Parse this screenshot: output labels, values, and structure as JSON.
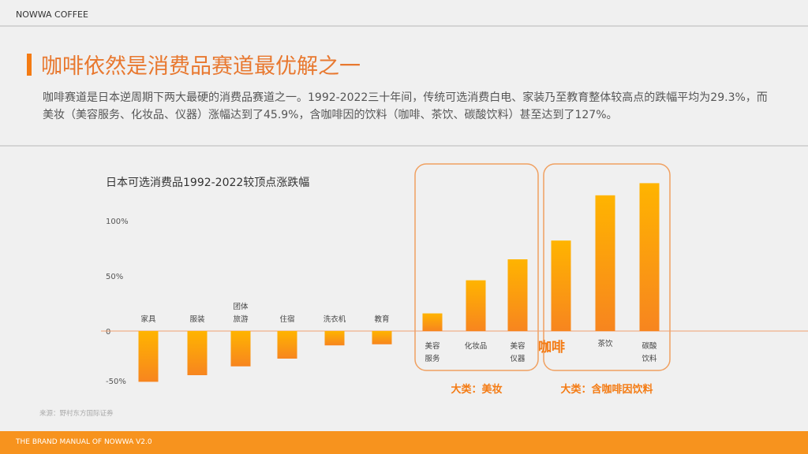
{
  "header": {
    "brand": "NOWWA COFFEE"
  },
  "title": "咖啡依然是消费品赛道最优解之一",
  "description": "咖啡赛道是日本逆周期下两大最硬的消费品赛道之一。1992-2022三十年间，传统可选消费白电、家装乃至教育整体较高点的跌幅平均为29.3%，而美妆（美容服务、化妆品、仪器）涨幅达到了45.9%，含咖啡因的饮料（咖啡、茶饮、碳酸饮料）甚至达到了127%。",
  "source": "来源：野村东方国际证券",
  "footer": "THE BRAND  MANUAL  OF NOWWA V2.0",
  "colors": {
    "accent": "#f47b13",
    "bar_top": "#ffb400",
    "bar_bottom": "#f7851f",
    "box": "#f0a060"
  },
  "chart_data": {
    "type": "bar",
    "title": "日本可选消费品1992-2022较顶点涨跌幅",
    "yticks": [
      "100%",
      "50%",
      "0",
      "-50%"
    ],
    "ylim": [
      -55,
      140
    ],
    "categories": [
      [
        "家具"
      ],
      [
        "服装"
      ],
      [
        "团体",
        "旅游"
      ],
      [
        "住宿"
      ],
      [
        "洗衣机"
      ],
      [
        "教育"
      ],
      [
        "美容",
        "服务"
      ],
      [
        "化妆品"
      ],
      [
        "美容",
        "仪器"
      ],
      [
        "咖啡"
      ],
      [
        "茶饮"
      ],
      [
        "碳酸",
        "饮料"
      ]
    ],
    "values": [
      -46,
      -40,
      -32,
      -25,
      -13,
      -12,
      16,
      46,
      65,
      82,
      123,
      134
    ],
    "groups": [
      {
        "label": "大类：美妆",
        "from": 6,
        "to": 8
      },
      {
        "label": "大类：含咖啡因饮料",
        "from": 9,
        "to": 11
      }
    ],
    "highlight": "咖啡"
  }
}
